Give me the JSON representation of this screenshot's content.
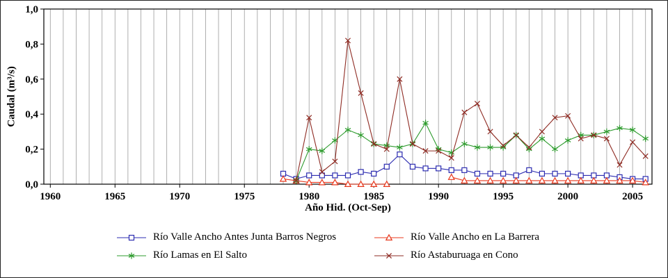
{
  "chart_data": {
    "type": "line",
    "title": "",
    "xlabel": "Año Hid. (Oct-Sep)",
    "ylabel": "Caudal (m³/s)",
    "xlim": [
      1959.5,
      2006.5
    ],
    "ylim": [
      0,
      1.0
    ],
    "grid": {
      "vertical_every_year": true,
      "from": 1960,
      "to": 2006,
      "color": "#9b9b9b",
      "horizontal": false
    },
    "legend_position": "bottom",
    "x_ticks": {
      "values": [
        1960,
        1965,
        1970,
        1975,
        1980,
        1985,
        1990,
        1995,
        2000,
        2005
      ],
      "labels": [
        "1960",
        "1965",
        "1970",
        "1975",
        "1980",
        "1985",
        "1990",
        "1995",
        "2000",
        "2005"
      ]
    },
    "y_ticks": {
      "values": [
        0,
        0.2,
        0.4,
        0.6,
        0.8,
        1.0
      ],
      "labels": [
        "0,0",
        "0,2",
        "0,4",
        "0,6",
        "0,8",
        "1,0"
      ]
    },
    "series": [
      {
        "name": "Río Valle Ancho Antes Junta Barros Negros",
        "marker": "square",
        "color": "#2b2bb0",
        "x_start": 1978,
        "values": [
          0.06,
          0.03,
          0.05,
          0.05,
          0.05,
          0.05,
          0.07,
          0.06,
          0.1,
          0.17,
          0.1,
          0.09,
          0.09,
          0.08,
          0.08,
          0.06,
          0.06,
          0.06,
          0.05,
          0.08,
          0.06,
          0.06,
          0.06,
          0.05,
          0.05,
          0.05,
          0.04,
          0.03,
          0.03
        ]
      },
      {
        "name": "Río Valle Ancho en La Barrera",
        "marker": "triangle",
        "color": "#e8391d",
        "x_start": 1978,
        "values": [
          0.03,
          0.02,
          0.01,
          0.01,
          0.01,
          0.0,
          0.0,
          0.0,
          0.0,
          null,
          null,
          null,
          null,
          0.04,
          0.02,
          0.02,
          0.02,
          0.02,
          0.02,
          0.02,
          0.02,
          0.02,
          0.02,
          0.02,
          0.02,
          0.02,
          0.02,
          0.02,
          0.01
        ]
      },
      {
        "name": "Río Lamas en El Salto",
        "marker": "asterisk",
        "color": "#2e9b2e",
        "x_start": 1979,
        "values": [
          0.02,
          0.2,
          0.19,
          0.25,
          0.31,
          0.28,
          0.23,
          0.22,
          0.21,
          0.23,
          0.35,
          0.2,
          0.18,
          0.23,
          0.21,
          0.21,
          0.21,
          0.28,
          0.2,
          0.26,
          0.2,
          0.25,
          0.28,
          0.28,
          0.3,
          0.32,
          0.31,
          0.26
        ]
      },
      {
        "name": "Río Astaburuaga en Cono",
        "marker": "x",
        "color": "#8e2b23",
        "x_start": 1979,
        "values": [
          0.02,
          0.38,
          0.07,
          0.13,
          0.82,
          0.52,
          0.23,
          0.2,
          0.6,
          0.23,
          0.19,
          0.19,
          0.15,
          0.41,
          0.46,
          0.3,
          0.22,
          0.28,
          0.21,
          0.3,
          0.38,
          0.39,
          0.26,
          0.28,
          0.26,
          0.11,
          0.24,
          0.16
        ]
      }
    ]
  }
}
